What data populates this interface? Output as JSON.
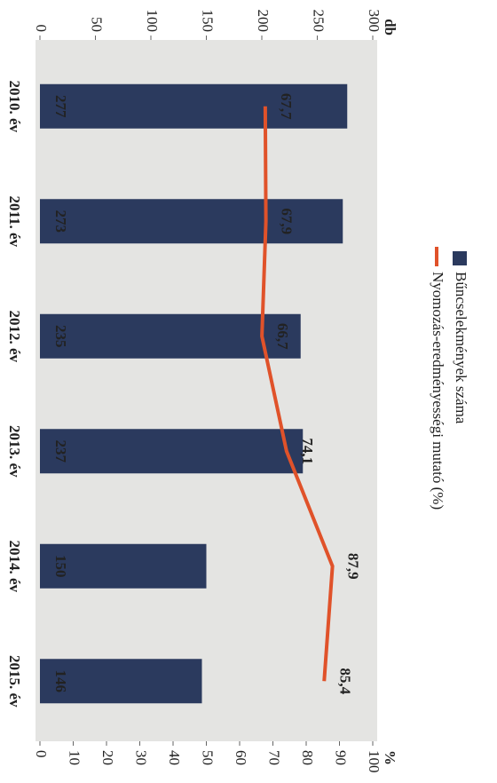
{
  "chart_data": {
    "type": "bar-line",
    "y_label": "db",
    "y2_label": "%",
    "categories": [
      "2010. év",
      "2011. év",
      "2012. év",
      "2013. év",
      "2014. év",
      "2015. év"
    ],
    "series": [
      {
        "name": "Bűncselekmények száma",
        "type": "bar",
        "color": "#2b3a5e",
        "values": [
          277,
          273,
          235,
          237,
          150,
          146
        ]
      },
      {
        "name": "Nyomozás-eredményességi mutató (%)",
        "type": "line",
        "axis": "y2",
        "color": "#e0522a",
        "values": [
          67.7,
          67.9,
          66.7,
          74.1,
          87.9,
          85.4
        ],
        "value_labels": [
          "67,7",
          "67,9",
          "66,7",
          "74,1",
          "87,9",
          "85,4"
        ]
      }
    ],
    "ylim": [
      0,
      300
    ],
    "yticks": [
      0,
      50,
      100,
      150,
      200,
      250,
      300
    ],
    "y2lim": [
      0,
      100
    ],
    "y2ticks": [
      0,
      10,
      20,
      30,
      40,
      50,
      60,
      70,
      80,
      90,
      100
    ],
    "grid": false
  }
}
